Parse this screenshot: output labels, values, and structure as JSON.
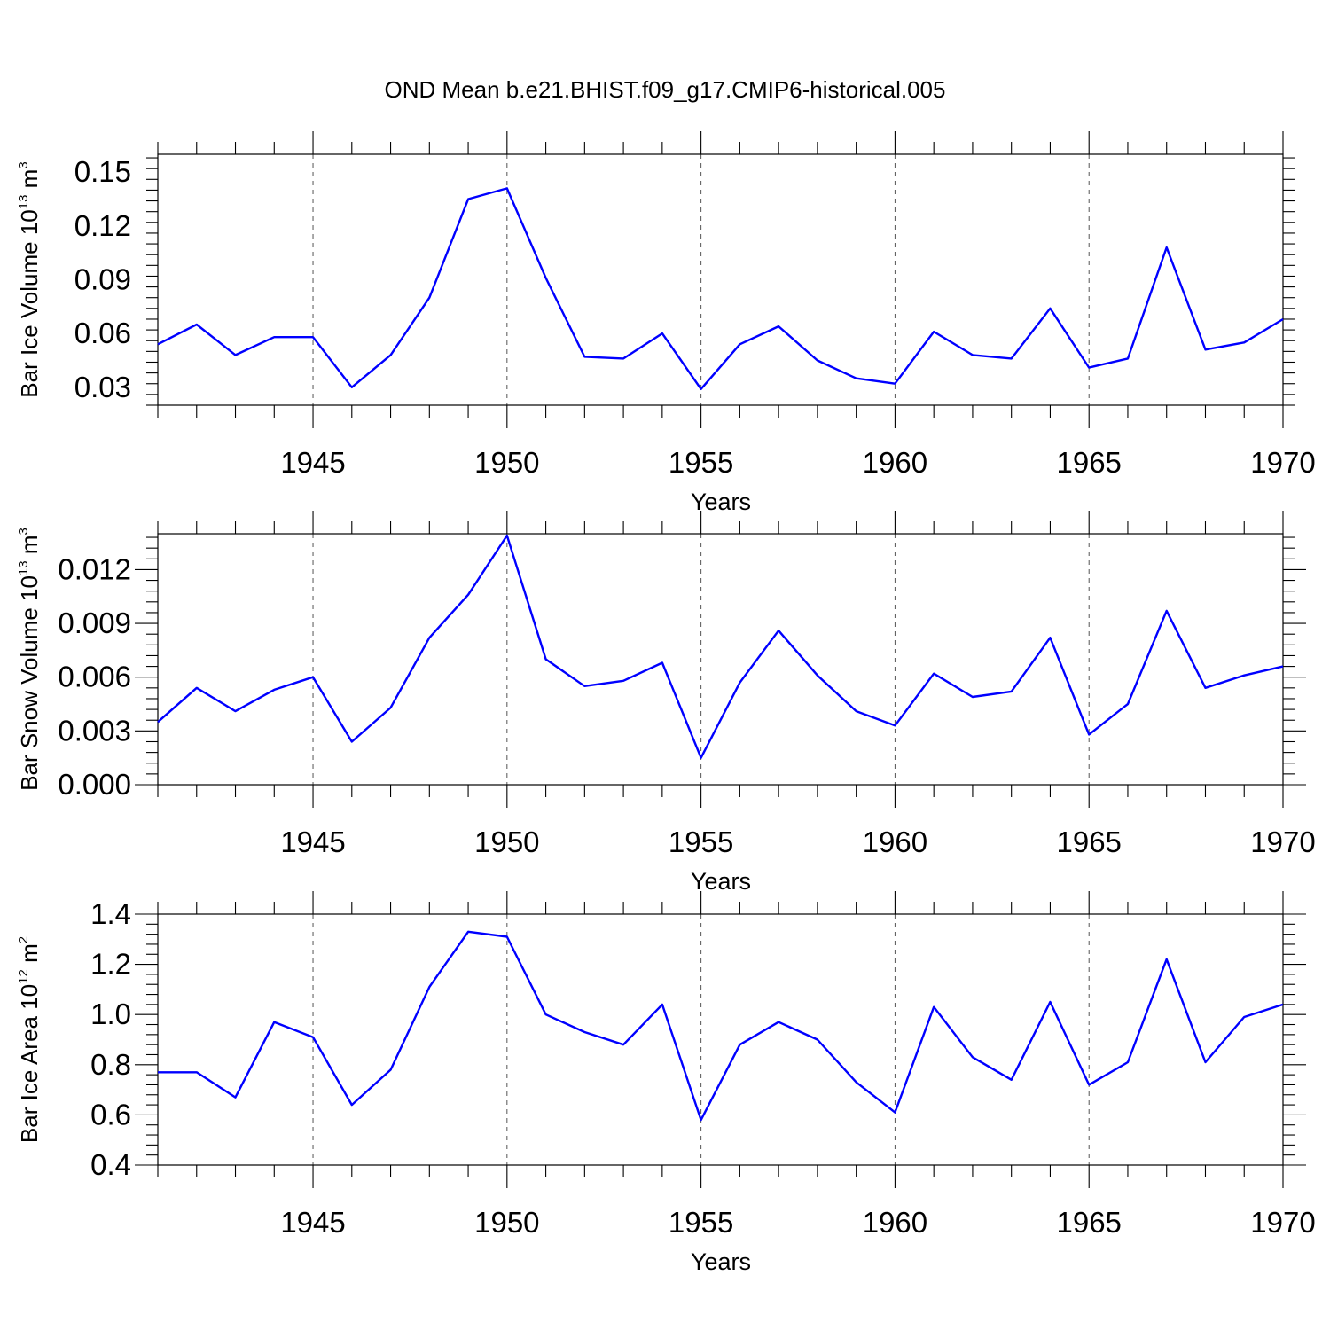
{
  "figure_title": "OND Mean b.e21.BHIST.f09_g17.CMIP6-historical.005",
  "colors": {
    "series": "#0000ff",
    "axes": "#000000",
    "grid": "#555555"
  },
  "chart_data": [
    {
      "type": "line",
      "ylabel": {
        "text": "Bar Ice Volume 10",
        "exp": "13",
        "unit": " m",
        "unit_exp": "3"
      },
      "xlabel": "Years",
      "xlim": [
        1941,
        1970
      ],
      "ylim": [
        0.02,
        0.16
      ],
      "yticks": [
        0.03,
        0.06,
        0.09,
        0.12,
        0.15
      ],
      "ytick_labels": [
        "0.03",
        "0.06",
        "0.09",
        "0.12",
        "0.15"
      ],
      "xticks": [
        1945,
        1950,
        1955,
        1960,
        1965,
        1970
      ],
      "xtick_labels": [
        "1945",
        "1950",
        "1955",
        "1960",
        "1965",
        "1970"
      ],
      "grid": "vertical dashed at major x ticks",
      "x": [
        1941,
        1942,
        1943,
        1944,
        1945,
        1946,
        1947,
        1948,
        1949,
        1950,
        1951,
        1952,
        1953,
        1954,
        1955,
        1956,
        1957,
        1958,
        1959,
        1960,
        1961,
        1962,
        1963,
        1964,
        1965,
        1966,
        1967,
        1968,
        1969,
        1970
      ],
      "values": [
        0.054,
        0.065,
        0.048,
        0.058,
        0.058,
        0.03,
        0.048,
        0.08,
        0.135,
        0.141,
        0.091,
        0.047,
        0.046,
        0.06,
        0.029,
        0.054,
        0.064,
        0.045,
        0.035,
        0.032,
        0.061,
        0.048,
        0.046,
        0.074,
        0.041,
        0.046,
        0.108,
        0.051,
        0.055,
        0.068
      ]
    },
    {
      "type": "line",
      "ylabel": {
        "text": "Bar Snow Volume 10",
        "exp": "13",
        "unit": " m",
        "unit_exp": "3"
      },
      "xlabel": "Years",
      "xlim": [
        1941,
        1970
      ],
      "ylim": [
        0,
        0.014
      ],
      "yticks": [
        0,
        0.003,
        0.006,
        0.009,
        0.012
      ],
      "ytick_labels": [
        "0.000",
        "0.003",
        "0.006",
        "0.009",
        "0.012"
      ],
      "xticks": [
        1945,
        1950,
        1955,
        1960,
        1965,
        1970
      ],
      "xtick_labels": [
        "1945",
        "1950",
        "1955",
        "1960",
        "1965",
        "1970"
      ],
      "grid": "vertical dashed at major x ticks",
      "x": [
        1941,
        1942,
        1943,
        1944,
        1945,
        1946,
        1947,
        1948,
        1949,
        1950,
        1951,
        1952,
        1953,
        1954,
        1955,
        1956,
        1957,
        1958,
        1959,
        1960,
        1961,
        1962,
        1963,
        1964,
        1965,
        1966,
        1967,
        1968,
        1969,
        1970
      ],
      "values": [
        0.0035,
        0.0054,
        0.0041,
        0.0053,
        0.006,
        0.0024,
        0.0043,
        0.0082,
        0.0106,
        0.0139,
        0.007,
        0.0055,
        0.0058,
        0.0068,
        0.0015,
        0.0057,
        0.0086,
        0.0061,
        0.0041,
        0.0033,
        0.0062,
        0.0049,
        0.0052,
        0.0082,
        0.0028,
        0.0045,
        0.0097,
        0.0054,
        0.0061,
        0.0066
      ]
    },
    {
      "type": "line",
      "ylabel": {
        "text": "Bar Ice Area 10",
        "exp": "12",
        "unit": " m",
        "unit_exp": "2"
      },
      "xlabel": "Years",
      "xlim": [
        1941,
        1970
      ],
      "ylim": [
        0.4,
        1.4
      ],
      "yticks": [
        0.4,
        0.6,
        0.8,
        1.0,
        1.2,
        1.4
      ],
      "ytick_labels": [
        "0.4",
        "0.6",
        "0.8",
        "1.0",
        "1.2",
        "1.4"
      ],
      "xticks": [
        1945,
        1950,
        1955,
        1960,
        1965,
        1970
      ],
      "xtick_labels": [
        "1945",
        "1950",
        "1955",
        "1960",
        "1965",
        "1970"
      ],
      "grid": "vertical dashed at major x ticks",
      "x": [
        1941,
        1942,
        1943,
        1944,
        1945,
        1946,
        1947,
        1948,
        1949,
        1950,
        1951,
        1952,
        1953,
        1954,
        1955,
        1956,
        1957,
        1958,
        1959,
        1960,
        1961,
        1962,
        1963,
        1964,
        1965,
        1966,
        1967,
        1968,
        1969,
        1970
      ],
      "values": [
        0.77,
        0.77,
        0.67,
        0.97,
        0.91,
        0.64,
        0.78,
        1.11,
        1.33,
        1.31,
        1.0,
        0.93,
        0.88,
        1.04,
        0.58,
        0.88,
        0.97,
        0.9,
        0.73,
        0.61,
        1.03,
        0.83,
        0.74,
        1.05,
        0.72,
        0.81,
        1.22,
        0.81,
        0.99,
        1.04
      ]
    }
  ]
}
